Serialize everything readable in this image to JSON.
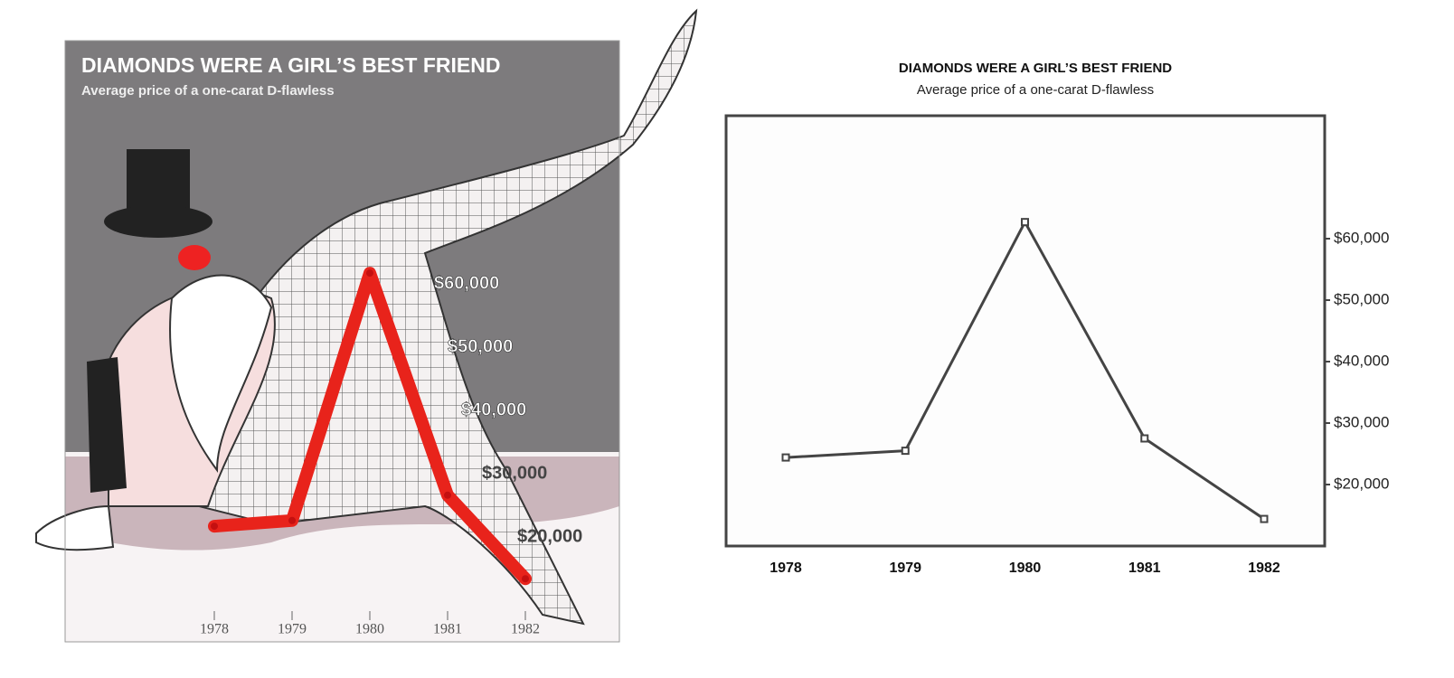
{
  "chart_data": [
    {
      "type": "line",
      "title": "DIAMONDS WERE A GIRL’S BEST FRIEND",
      "subtitle": "Average price of a one-carat D-flawless",
      "categories": [
        "1978",
        "1979",
        "1980",
        "1981",
        "1982"
      ],
      "series": [
        {
          "color": "#e8231b",
          "values": [
            21700,
            22600,
            61700,
            26600,
            13400
          ]
        }
      ],
      "ylim": [
        10000,
        80000
      ],
      "yticks": [
        {
          "value": 60000,
          "label": "$60,000"
        },
        {
          "value": 50000,
          "label": "$50,000"
        },
        {
          "value": 40000,
          "label": "$40,000"
        },
        {
          "value": 30000,
          "label": "$30,000"
        },
        {
          "value": 20000,
          "label": "$20,000"
        }
      ]
    },
    {
      "type": "line",
      "title": "DIAMONDS WERE A GIRL’S BEST FRIEND",
      "subtitle": "Average price of a one-carat D-flawless",
      "categories": [
        "1978",
        "1979",
        "1980",
        "1981",
        "1982"
      ],
      "series": [
        {
          "color": "#444444",
          "values": [
            24400,
            25500,
            62700,
            27500,
            14400
          ]
        }
      ],
      "ylim": [
        10000,
        80000
      ],
      "yticks": [
        {
          "value": 60000,
          "label": "$60,000"
        },
        {
          "value": 50000,
          "label": "$50,000"
        },
        {
          "value": 40000,
          "label": "$40,000"
        },
        {
          "value": 30000,
          "label": "$30,000"
        },
        {
          "value": 20000,
          "label": "$20,000"
        }
      ]
    }
  ]
}
